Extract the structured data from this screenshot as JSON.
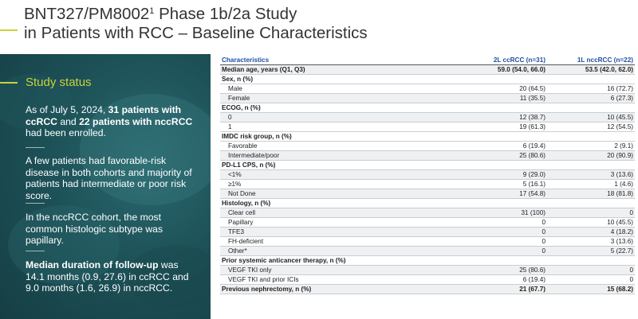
{
  "title": {
    "line1_main": "BNT327/PM8002",
    "line1_sup": "1",
    "line1_rest": " Phase 1b/2a Study",
    "line2": "in Patients with RCC – Baseline Characteristics"
  },
  "panel": {
    "heading": "Study status",
    "p1": {
      "a": "As of July  5, 2024, ",
      "b": "31 patients with ccRCC",
      "c": " and ",
      "d": "22 patients with nccRCC",
      "e": " had been enrolled."
    },
    "p2": "A few patients had favorable-risk disease in both cohorts and majority of patients had intermediate or poor risk score.",
    "p3": "In the nccRCC cohort, the most common histologic subtype was papillary.",
    "p4": {
      "a": "Median duration of follow-up",
      "b": " was 14.1 months (0.9, 27.6) in ccRCC and 9.0 months (1.6, 26.9) in nccRCC."
    }
  },
  "table": {
    "headers": [
      "Characteristics",
      "2L ccRCC (n=31)",
      "1L nccRCC (n=22)"
    ],
    "rows": [
      {
        "type": "bold",
        "label": "Median age, years (Q1, Q3)",
        "c1": "59.0 (54.0, 66.0)",
        "c2": "53.5 (42.0, 62.0)"
      },
      {
        "type": "hdr",
        "label": "Sex, n (%)",
        "c1": "",
        "c2": ""
      },
      {
        "type": "sub",
        "label": "Male",
        "c1": "20 (64.5)",
        "c2": "16 (72.7)"
      },
      {
        "type": "sub",
        "label": "Female",
        "c1": "11 (35.5)",
        "c2": "6 (27.3)"
      },
      {
        "type": "hdr",
        "label": "ECOG, n (%)",
        "c1": "",
        "c2": ""
      },
      {
        "type": "sub",
        "label": "0",
        "c1": "12 (38.7)",
        "c2": "10 (45.5)"
      },
      {
        "type": "sub",
        "label": "1",
        "c1": "19 (61.3)",
        "c2": "12 (54.5)"
      },
      {
        "type": "hdr",
        "label": "IMDC risk group, n (%)",
        "c1": "",
        "c2": ""
      },
      {
        "type": "sub",
        "label": "Favorable",
        "c1": "6 (19.4)",
        "c2": "2 (9.1)"
      },
      {
        "type": "sub",
        "label": "Intermediate/poor",
        "c1": "25 (80.6)",
        "c2": "20 (90.9)"
      },
      {
        "type": "hdr",
        "label": "PD-L1 CPS, n (%)",
        "c1": "",
        "c2": ""
      },
      {
        "type": "sub",
        "label": "<1%",
        "c1": "9 (29.0)",
        "c2": "3 (13.6)"
      },
      {
        "type": "sub",
        "label": "≥1%",
        "c1": "5 (16.1)",
        "c2": "1 (4.6)"
      },
      {
        "type": "sub",
        "label": "Not Done",
        "c1": "17 (54.8)",
        "c2": "18 (81.8)"
      },
      {
        "type": "hdr",
        "label": "Histology, n (%)",
        "c1": "",
        "c2": ""
      },
      {
        "type": "sub",
        "label": "Clear cell",
        "c1": "31 (100)",
        "c2": "0"
      },
      {
        "type": "sub",
        "label": "Papillary",
        "c1": "0",
        "c2": "10 (45.5)"
      },
      {
        "type": "sub",
        "label": "TFE3",
        "c1": "0",
        "c2": "4 (18.2)"
      },
      {
        "type": "sub",
        "label": "FH-deficient",
        "c1": "0",
        "c2": "3 (13.6)"
      },
      {
        "type": "sub",
        "label": "Other*",
        "c1": "0",
        "c2": "5 (22.7)"
      },
      {
        "type": "hdr",
        "label": "Prior systemic anticancer therapy, n (%)",
        "c1": "",
        "c2": ""
      },
      {
        "type": "sub",
        "label": "VEGF TKI only",
        "c1": "25 (80.6)",
        "c2": "0"
      },
      {
        "type": "sub",
        "label": "VEGF TKI and prior ICIs",
        "c1": "6 (19.4)",
        "c2": "0"
      },
      {
        "type": "bold",
        "label": "Previous nephrectomy, n (%)",
        "c1": "21 (67.7)",
        "c2": "15 (68.2)"
      }
    ]
  },
  "colors": {
    "accent": "#c9d33a",
    "panel_bg": "#1d5258",
    "header_blue": "#1e4fa0"
  }
}
